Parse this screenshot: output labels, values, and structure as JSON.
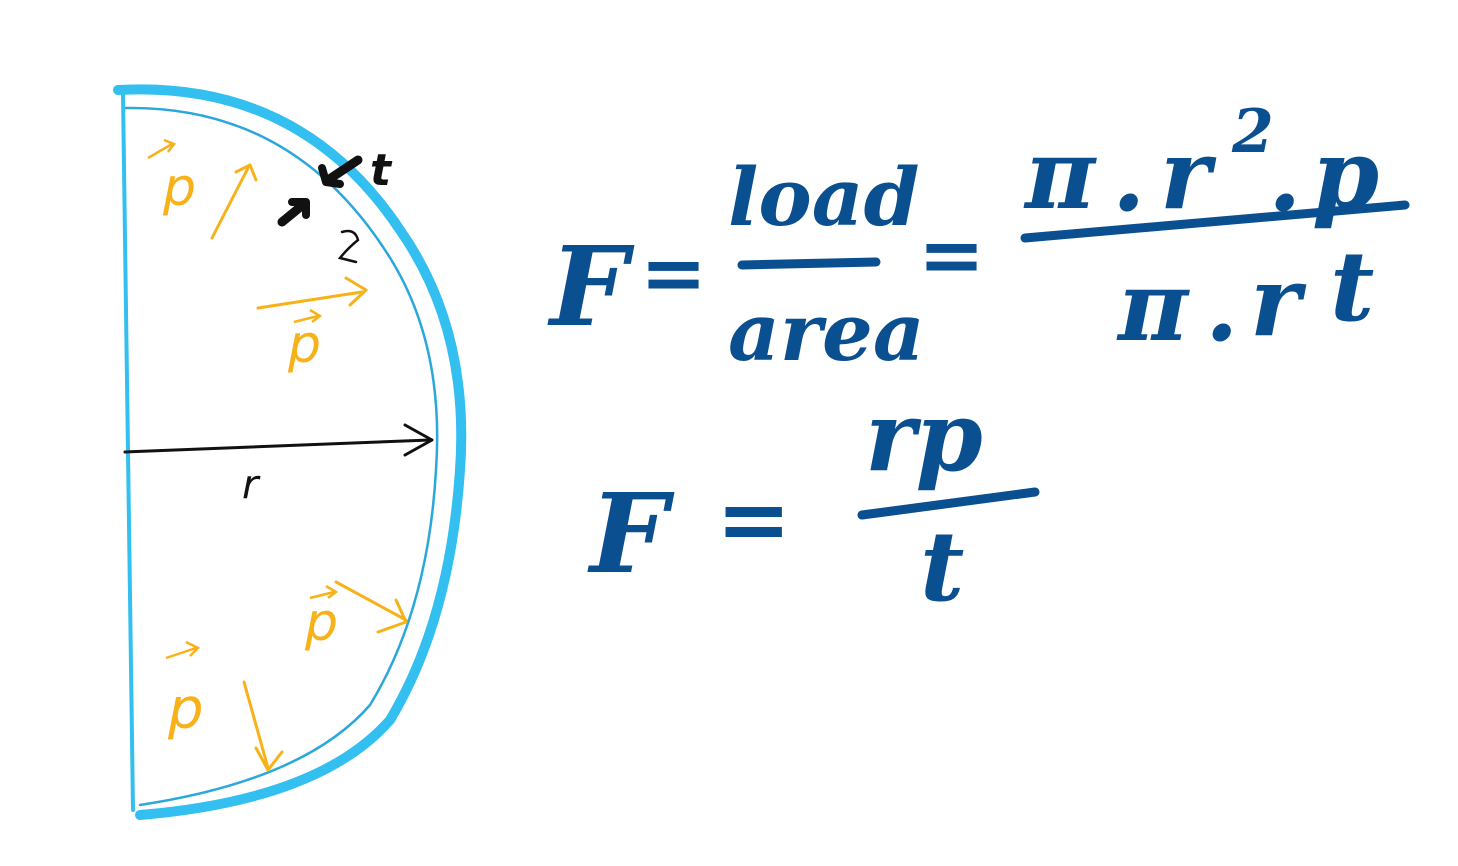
{
  "colors": {
    "shell": "#33bff0",
    "shell_inner": "#2aa8dc",
    "pressure": "#f7b21a",
    "radius": "#111111",
    "thickness": "#111111",
    "equation": "#0a4f8f"
  },
  "diagram": {
    "pressure_label": "p",
    "radius_label": "r",
    "thickness_label": "t"
  },
  "equations": {
    "eq1": {
      "lhs": "F",
      "equals": "=",
      "num1": "load",
      "den1": "area",
      "equals2": "=",
      "num2_pi": "π",
      "num2_dot1": ".",
      "num2_r": "r",
      "num2_exp": "2",
      "num2_dot2": ".",
      "num2_p": "p",
      "den2_pi": "π",
      "den2_dot": ".",
      "den2_r": "r",
      "den2_t": "t"
    },
    "eq2": {
      "lhs": "F",
      "equals": "=",
      "num": "rp",
      "den": "t"
    }
  }
}
